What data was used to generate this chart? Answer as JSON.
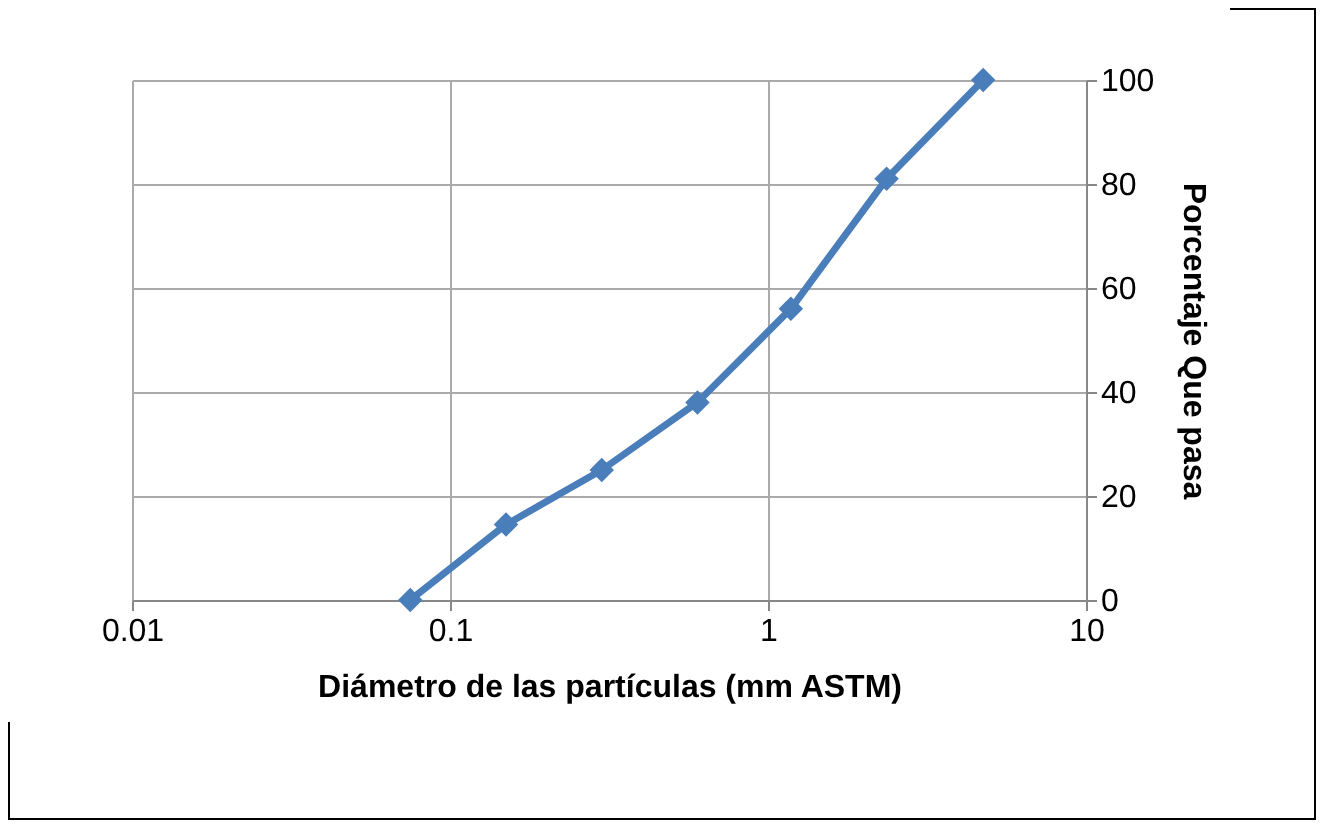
{
  "chart_data": {
    "type": "line",
    "xlabel": "Diámetro de las partículas (mm ASTM)",
    "ylabel": "Porcentaje Que pasa",
    "x": [
      0.075,
      0.15,
      0.3,
      0.6,
      1.18,
      2.36,
      4.75
    ],
    "series": [
      {
        "color": "#4a7ebb",
        "values": [
          0,
          14.5,
          25,
          38,
          56,
          81,
          100
        ]
      }
    ],
    "log": "x",
    "xlim": [
      0.01,
      10
    ],
    "xticks": [
      0.01,
      0.1,
      1,
      10
    ],
    "ylim": [
      0,
      100
    ],
    "yticks": [
      0,
      20,
      40,
      60,
      80,
      100
    ],
    "grid": true,
    "marker": "diamond",
    "line_style": "solid",
    "legend": false
  }
}
